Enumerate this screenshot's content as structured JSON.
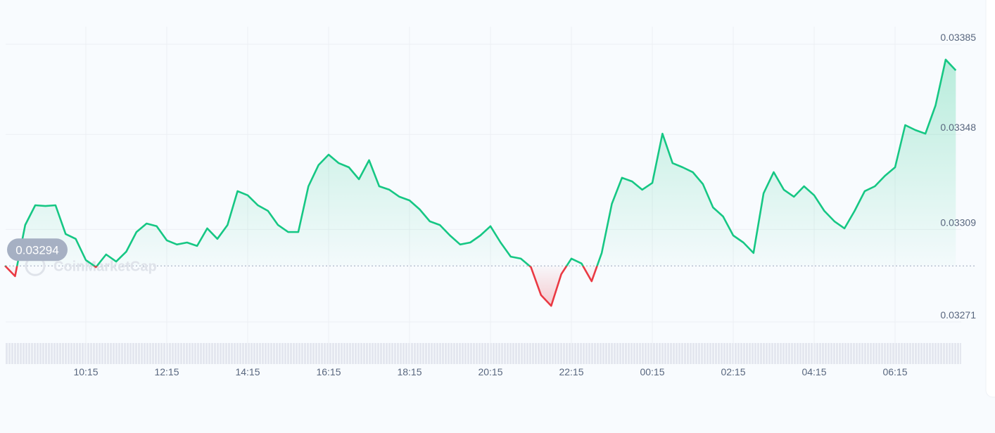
{
  "chart_data": {
    "type": "line",
    "watermark": "CoinMarketCap",
    "categories": [
      null,
      null,
      null,
      null,
      null,
      null,
      null,
      null,
      "10:15",
      null,
      null,
      null,
      null,
      null,
      null,
      null,
      "12:15",
      null,
      null,
      null,
      null,
      null,
      null,
      null,
      "14:15",
      null,
      null,
      null,
      null,
      null,
      null,
      null,
      "16:15",
      null,
      null,
      null,
      null,
      null,
      null,
      null,
      "18:15",
      null,
      null,
      null,
      null,
      null,
      null,
      null,
      "20:15",
      null,
      null,
      null,
      null,
      null,
      null,
      null,
      "22:15",
      null,
      null,
      null,
      null,
      null,
      null,
      null,
      "00:15",
      null,
      null,
      null,
      null,
      null,
      null,
      null,
      "02:15",
      null,
      null,
      null,
      null,
      null,
      null,
      null,
      "04:15",
      null,
      null,
      null,
      null,
      null,
      null,
      null,
      "06:15",
      null,
      null,
      null,
      null,
      null,
      null
    ],
    "values": [
      0.032941,
      0.032898,
      0.033108,
      0.033189,
      0.033186,
      0.033189,
      0.033071,
      0.033051,
      0.032964,
      0.032935,
      0.032987,
      0.032958,
      0.032999,
      0.033079,
      0.033114,
      0.033103,
      0.033045,
      0.033028,
      0.033036,
      0.033022,
      0.033094,
      0.033051,
      0.033108,
      0.033247,
      0.03323,
      0.033189,
      0.033166,
      0.033108,
      0.033079,
      0.033079,
      0.033267,
      0.033354,
      0.033397,
      0.033362,
      0.033345,
      0.033296,
      0.033374,
      0.033267,
      0.033253,
      0.033224,
      0.033209,
      0.033172,
      0.033123,
      0.033108,
      0.033065,
      0.033028,
      0.033036,
      0.033065,
      0.033103,
      0.033036,
      0.032978,
      0.03297,
      0.032935,
      0.03282,
      0.032776,
      0.032906,
      0.03297,
      0.03295,
      0.032877,
      0.032993,
      0.033195,
      0.033302,
      0.033287,
      0.033253,
      0.033281,
      0.033483,
      0.033362,
      0.033345,
      0.033325,
      0.033276,
      0.03318,
      0.033143,
      0.033065,
      0.033036,
      0.032993,
      0.033238,
      0.033325,
      0.033253,
      0.033224,
      0.033267,
      0.03323,
      0.033166,
      0.033123,
      0.033094,
      0.033166,
      0.033247,
      0.033267,
      0.03331,
      0.033345,
      0.033518,
      0.033498,
      0.033483,
      0.033599,
      0.033787,
      0.033743
    ],
    "reference_value": 0.03294,
    "up_color": "#16c784",
    "down_color": "#ea3943",
    "ylim": [
      0.03271,
      0.03385
    ],
    "yticks": [
      0.03271,
      0.03309,
      0.03348,
      0.03385
    ],
    "grid": true
  }
}
